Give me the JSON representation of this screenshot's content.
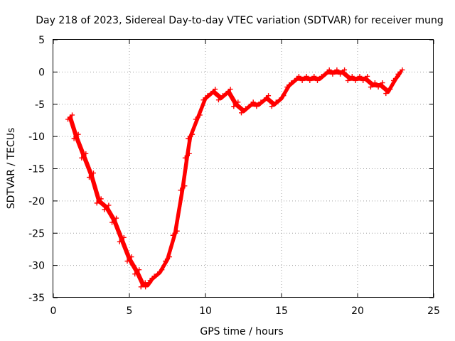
{
  "chart_data": {
    "type": "scatter",
    "title": "Day 218 of 2023, Sidereal Day-to-day VTEC variation (SDTVAR) for receiver mung",
    "xlabel": "GPS time / hours",
    "ylabel": "SDTVAR / TECUs",
    "xlim": [
      0,
      25
    ],
    "ylim": [
      -35,
      5
    ],
    "xticks": [
      0,
      5,
      10,
      15,
      20,
      25
    ],
    "yticks": [
      5,
      0,
      -5,
      -10,
      -15,
      -20,
      -25,
      -30,
      -35
    ],
    "grid": true,
    "marker": "+",
    "series": [
      {
        "name": "SDTVAR",
        "color": "#ff0000",
        "x": [
          1.1,
          1.5,
          2.0,
          2.5,
          3.0,
          3.5,
          4.0,
          4.5,
          5.0,
          5.5,
          5.9,
          6.2,
          6.5,
          7.0,
          7.5,
          8.0,
          8.5,
          8.8,
          9.0,
          9.5,
          10.0,
          10.5,
          11.0,
          11.5,
          12.0,
          12.5,
          13.0,
          13.5,
          14.0,
          14.5,
          15.0,
          15.5,
          16.0,
          16.5,
          17.0,
          17.5,
          18.0,
          18.5,
          19.0,
          19.5,
          20.0,
          20.5,
          21.0,
          21.5,
          22.0,
          22.5,
          22.8
        ],
        "y": [
          -7,
          -10,
          -13,
          -16,
          -20,
          -21,
          -23,
          -26,
          -29,
          -31,
          -33,
          -33,
          -32,
          -31,
          -29,
          -25,
          -18,
          -13,
          -10,
          -7,
          -4,
          -3,
          -4,
          -3,
          -5,
          -6,
          -5,
          -5,
          -4,
          -5,
          -4,
          -2,
          -1,
          -1,
          -1,
          -1,
          0,
          0,
          0,
          -1,
          -1,
          -1,
          -2,
          -2,
          -3,
          -1,
          0
        ]
      }
    ]
  }
}
